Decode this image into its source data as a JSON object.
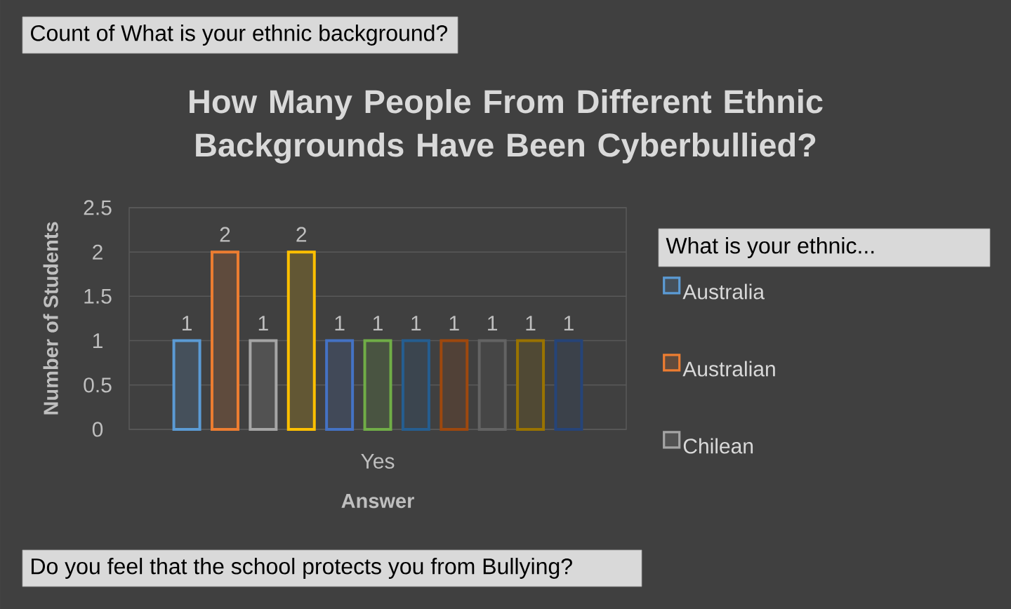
{
  "chart_data": {
    "type": "bar",
    "title": "How Many People From Different Ethnic Backgrounds Have Been Cyberbullied?",
    "xlabel": "Answer",
    "ylabel": "Number of Students",
    "legend_title": "What is your ethnic...",
    "annotations": [
      "Count of What is your ethnic background?",
      "Do you feel that the school protects you from Bullying?"
    ],
    "categories": [
      "Yes"
    ],
    "series": [
      {
        "name": "Australia",
        "color": "#5b9bd5",
        "values": [
          1
        ]
      },
      {
        "name": "Australian",
        "color": "#ed7d31",
        "values": [
          2
        ]
      },
      {
        "name": "Chilean",
        "color": "#a5a5a5",
        "values": [
          1
        ]
      },
      {
        "color": "#ffc000",
        "values": [
          2
        ]
      },
      {
        "color": "#4472c4",
        "values": [
          1
        ]
      },
      {
        "color": "#70ad47",
        "values": [
          1
        ]
      },
      {
        "color": "#255e91",
        "values": [
          1
        ]
      },
      {
        "color": "#9e480e",
        "values": [
          1
        ]
      },
      {
        "color": "#636363",
        "values": [
          1
        ]
      },
      {
        "color": "#997300",
        "values": [
          1
        ]
      },
      {
        "color": "#264478",
        "values": [
          1
        ]
      }
    ],
    "ylim": [
      0,
      2.5
    ],
    "yticks": [
      0,
      0.5,
      1,
      1.5,
      2,
      2.5
    ],
    "grid": "y",
    "legend": "right",
    "data_labels": true
  }
}
